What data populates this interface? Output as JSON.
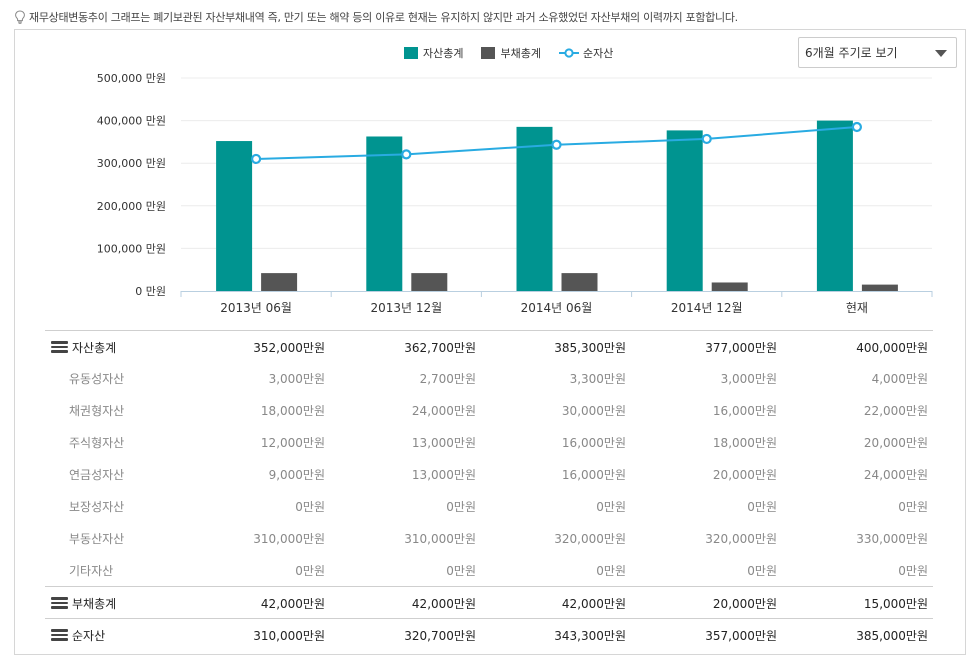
{
  "notice": "재무상태변동추이 그래프는 폐기보관된 자산부채내역 즉, 만기 또는 해약 등의 이유로 현재는 유지하지 않지만 과거 소유했었던 자산부채의 이력까지 포함합니다.",
  "period_select": {
    "value": "6개월 주기로 보기"
  },
  "chart_data": {
    "type": "bar",
    "categories": [
      "2013년 06월",
      "2013년 12월",
      "2014년 06월",
      "2014년 12월",
      "현재"
    ],
    "series": [
      {
        "name": "자산총계",
        "type": "bar",
        "color": "#009490",
        "values": [
          352000,
          362700,
          385300,
          377000,
          400000
        ]
      },
      {
        "name": "부채총계",
        "type": "bar",
        "color": "#555555",
        "values": [
          42000,
          42000,
          42000,
          20000,
          15000
        ]
      },
      {
        "name": "순자산",
        "type": "line",
        "color": "#29abe2",
        "values": [
          310000,
          320700,
          343300,
          357000,
          385000
        ]
      }
    ],
    "ylim": [
      0,
      500000
    ],
    "yticks": [
      0,
      100000,
      200000,
      300000,
      400000,
      500000
    ],
    "ytick_labels": [
      "0 만원",
      "100,000 만원",
      "200,000 만원",
      "300,000 만원",
      "400,000 만원",
      "500,000 만원"
    ],
    "grid": true,
    "legend_position": "top"
  },
  "table": {
    "rows": [
      {
        "label": "자산총계",
        "kind": "major",
        "values": [
          "352,000만원",
          "362,700만원",
          "385,300만원",
          "377,000만원",
          "400,000만원"
        ]
      },
      {
        "label": "유동성자산",
        "kind": "minor",
        "values": [
          "3,000만원",
          "2,700만원",
          "3,300만원",
          "3,000만원",
          "4,000만원"
        ]
      },
      {
        "label": "채권형자산",
        "kind": "minor",
        "values": [
          "18,000만원",
          "24,000만원",
          "30,000만원",
          "16,000만원",
          "22,000만원"
        ]
      },
      {
        "label": "주식형자산",
        "kind": "minor",
        "values": [
          "12,000만원",
          "13,000만원",
          "16,000만원",
          "18,000만원",
          "20,000만원"
        ]
      },
      {
        "label": "연금성자산",
        "kind": "minor",
        "values": [
          "9,000만원",
          "13,000만원",
          "16,000만원",
          "20,000만원",
          "24,000만원"
        ]
      },
      {
        "label": "보장성자산",
        "kind": "minor",
        "values": [
          "0만원",
          "0만원",
          "0만원",
          "0만원",
          "0만원"
        ]
      },
      {
        "label": "부동산자산",
        "kind": "minor",
        "values": [
          "310,000만원",
          "310,000만원",
          "320,000만원",
          "320,000만원",
          "330,000만원"
        ]
      },
      {
        "label": "기타자산",
        "kind": "minor",
        "values": [
          "0만원",
          "0만원",
          "0만원",
          "0만원",
          "0만원"
        ]
      },
      {
        "label": "부채총계",
        "kind": "major",
        "values": [
          "42,000만원",
          "42,000만원",
          "42,000만원",
          "20,000만원",
          "15,000만원"
        ]
      },
      {
        "label": "순자산",
        "kind": "major",
        "values": [
          "310,000만원",
          "320,700만원",
          "343,300만원",
          "357,000만원",
          "385,000만원"
        ]
      }
    ]
  }
}
